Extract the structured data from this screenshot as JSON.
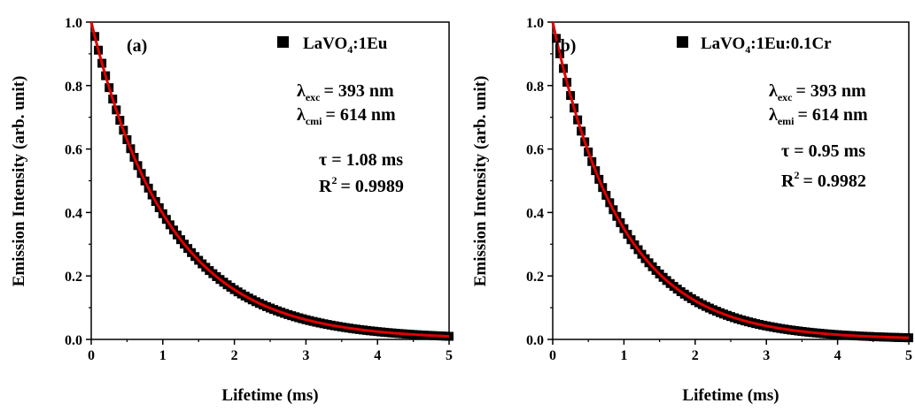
{
  "chart_data": [
    {
      "type": "scatter",
      "panel_label": "(a)",
      "xlabel": "Lifetime (ms)",
      "ylabel": "Emission Intensity (arb. unit)",
      "xlim": [
        0,
        5
      ],
      "ylim": [
        0,
        1.0
      ],
      "xticks": [
        "0",
        "1",
        "2",
        "3",
        "4",
        "5"
      ],
      "yticks": [
        "0.0",
        "0.2",
        "0.4",
        "0.6",
        "0.8",
        "1.0"
      ],
      "legend": {
        "main": "LaVO",
        "sub": "4",
        "rest": ":1Eu",
        "position": "top-right"
      },
      "annotations": {
        "exc": {
          "sym": "λ",
          "sub": "exc",
          "value": "= 393 nm"
        },
        "emi": {
          "sym": "λ",
          "sub": "cmi",
          "value": "= 614 nm"
        },
        "tau": "τ = 1.08 ms",
        "r2": {
          "main": "R",
          "sup": "2",
          "value": "= 0.9989"
        }
      },
      "series": [
        {
          "name": "LaVO4:1Eu",
          "kind": "points",
          "color": "#000000",
          "tau_ms": 1.08,
          "x_start": 0.05,
          "x_end": 5.0,
          "x_step": 0.05
        },
        {
          "kind": "fit",
          "color": "#e00000",
          "tau_ms": 1.08
        }
      ]
    },
    {
      "type": "scatter",
      "panel_label": "(b)",
      "xlabel": "Lifetime (ms)",
      "ylabel": "Emission Intensity (arb. unit)",
      "xlim": [
        0,
        5
      ],
      "ylim": [
        0,
        1.0
      ],
      "xticks": [
        "0",
        "1",
        "2",
        "3",
        "4",
        "5"
      ],
      "yticks": [
        "0.0",
        "0.2",
        "0.4",
        "0.6",
        "0.8",
        "1.0"
      ],
      "legend": {
        "main": "LaVO",
        "sub": "4",
        "rest": ":1Eu:0.1Cr",
        "position": "top-right"
      },
      "annotations": {
        "exc": {
          "sym": "λ",
          "sub": "exc",
          "value": "= 393 nm"
        },
        "emi": {
          "sym": "λ",
          "sub": "emi",
          "value": "= 614 nm"
        },
        "tau": "τ = 0.95 ms",
        "r2": {
          "main": "R",
          "sup": "2",
          "value": "= 0.9982"
        }
      },
      "series": [
        {
          "name": "LaVO4:1Eu:0.1Cr",
          "kind": "points",
          "color": "#000000",
          "tau_ms": 0.95,
          "x_start": 0.05,
          "x_end": 5.0,
          "x_step": 0.05
        },
        {
          "kind": "fit",
          "color": "#e00000",
          "tau_ms": 0.95
        }
      ]
    }
  ]
}
